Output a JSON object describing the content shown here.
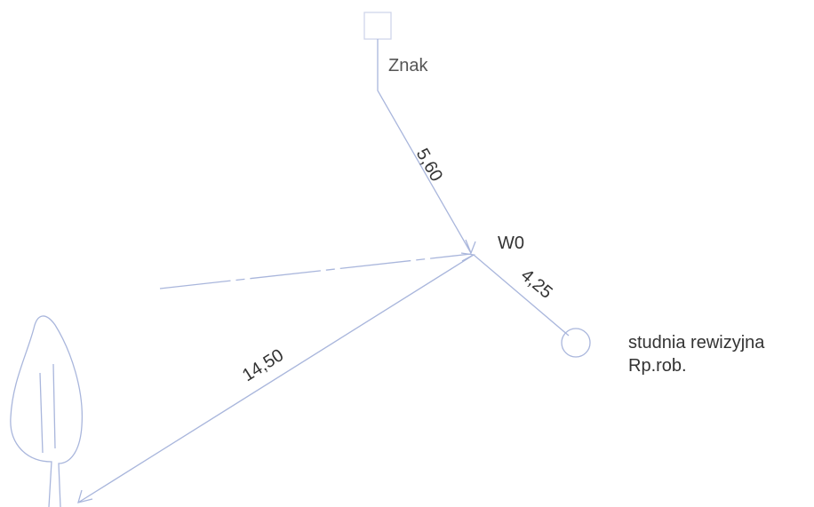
{
  "nodes": [
    {
      "label": "Znak"
    },
    {
      "label": "W0"
    },
    {
      "label": "studnia rewizyjna",
      "sublabel": "Rp.rob."
    }
  ],
  "edges": [
    {
      "label": "5,60"
    },
    {
      "label": "4,25"
    },
    {
      "label": "14,50"
    }
  ]
}
